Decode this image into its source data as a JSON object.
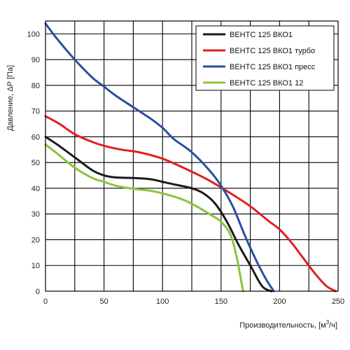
{
  "chart_data": {
    "type": "line",
    "xlabel_prefix": "Производительность, [м",
    "xlabel_sup": "3",
    "xlabel_suffix": "/ч]",
    "ylabel": "Давление, ΔР [Па]",
    "xlim": [
      0,
      250
    ],
    "ylim": [
      0,
      105
    ],
    "xticks": [
      0,
      50,
      100,
      150,
      200,
      250
    ],
    "yticks": [
      0,
      10,
      20,
      30,
      40,
      50,
      60,
      70,
      80,
      90,
      100
    ],
    "grid": true,
    "legend_position": "top-right",
    "series": [
      {
        "name": "ВЕНТС 125 ВКО1",
        "color": "#1a1a1a",
        "points": [
          [
            0,
            60
          ],
          [
            10,
            57
          ],
          [
            25,
            52
          ],
          [
            40,
            47
          ],
          [
            50,
            45
          ],
          [
            60,
            44.2
          ],
          [
            75,
            44
          ],
          [
            90,
            43.5
          ],
          [
            100,
            42.5
          ],
          [
            110,
            41.5
          ],
          [
            125,
            40
          ],
          [
            135,
            38
          ],
          [
            145,
            34
          ],
          [
            155,
            27
          ],
          [
            165,
            18
          ],
          [
            175,
            10
          ],
          [
            185,
            2
          ],
          [
            193,
            0
          ]
        ]
      },
      {
        "name": "ВЕНТС 125 ВКО1 турбо",
        "color": "#e02020",
        "points": [
          [
            0,
            68
          ],
          [
            12,
            65
          ],
          [
            25,
            61
          ],
          [
            40,
            58
          ],
          [
            50,
            56.5
          ],
          [
            65,
            55
          ],
          [
            80,
            54
          ],
          [
            100,
            51.5
          ],
          [
            120,
            47.5
          ],
          [
            140,
            43
          ],
          [
            160,
            37.5
          ],
          [
            175,
            33
          ],
          [
            190,
            27.5
          ],
          [
            200,
            24
          ],
          [
            210,
            19
          ],
          [
            220,
            13
          ],
          [
            230,
            7
          ],
          [
            240,
            2
          ],
          [
            248,
            0
          ]
        ]
      },
      {
        "name": "ВЕНТС 125 ВКО1 пресс",
        "color": "#2a4fa0",
        "points": [
          [
            0,
            104
          ],
          [
            10,
            98
          ],
          [
            25,
            90
          ],
          [
            40,
            83
          ],
          [
            50,
            79.5
          ],
          [
            60,
            76
          ],
          [
            75,
            71.5
          ],
          [
            90,
            67
          ],
          [
            100,
            63.5
          ],
          [
            110,
            59
          ],
          [
            125,
            54
          ],
          [
            140,
            47
          ],
          [
            150,
            41
          ],
          [
            160,
            33
          ],
          [
            170,
            22
          ],
          [
            180,
            12
          ],
          [
            188,
            5
          ],
          [
            195,
            0
          ]
        ]
      },
      {
        "name": "ВЕНТС 125 ВКО1 12",
        "color": "#8cc43c",
        "points": [
          [
            0,
            57
          ],
          [
            10,
            53.5
          ],
          [
            25,
            48
          ],
          [
            40,
            44
          ],
          [
            50,
            42.5
          ],
          [
            60,
            41
          ],
          [
            75,
            39.8
          ],
          [
            90,
            39
          ],
          [
            100,
            38
          ],
          [
            115,
            36
          ],
          [
            125,
            34
          ],
          [
            140,
            30
          ],
          [
            150,
            27
          ],
          [
            158,
            22
          ],
          [
            163,
            14
          ],
          [
            166,
            7
          ],
          [
            168,
            2
          ],
          [
            169,
            0
          ]
        ]
      }
    ]
  }
}
